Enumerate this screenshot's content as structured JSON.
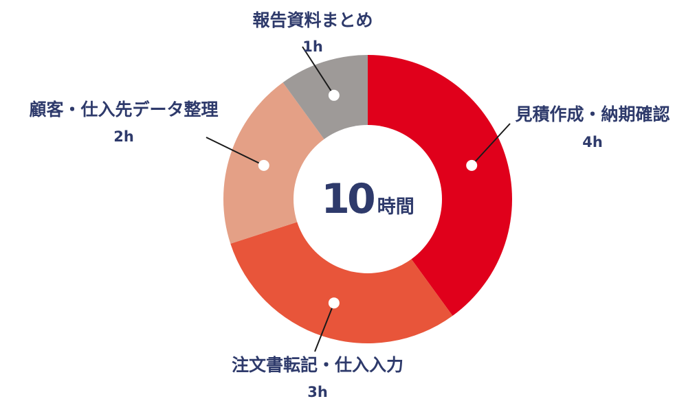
{
  "chart_data": {
    "type": "pie",
    "variant": "donut",
    "center_label": {
      "value": "10",
      "unit": "時間"
    },
    "slices": [
      {
        "name": "見積作成・納期確認",
        "value": 4,
        "value_label": "4h",
        "color": "#e0001b"
      },
      {
        "name": "注文書転記・仕入入力",
        "value": 3,
        "value_label": "3h",
        "color": "#e8553a"
      },
      {
        "name": "顧客・仕入先データ整理",
        "value": 2,
        "value_label": "2h",
        "color": "#e4a086"
      },
      {
        "name": "報告資料まとめ",
        "value": 1,
        "value_label": "1h",
        "color": "#9e9a98"
      }
    ]
  }
}
